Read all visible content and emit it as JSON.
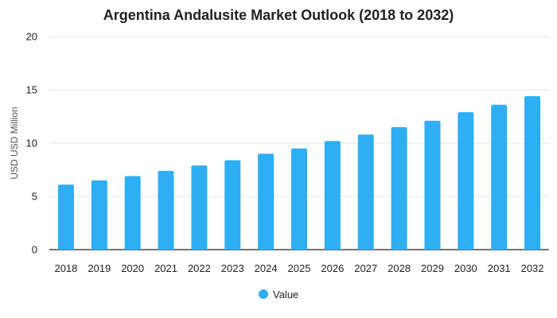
{
  "chart_data": {
    "type": "bar",
    "title": "Argentina Andalusite Market Outlook (2018 to 2032)",
    "xlabel": "",
    "ylabel": "USD USD Million",
    "categories": [
      "2018",
      "2019",
      "2020",
      "2021",
      "2022",
      "2023",
      "2024",
      "2025",
      "2026",
      "2027",
      "2028",
      "2029",
      "2030",
      "2031",
      "2032"
    ],
    "series": [
      {
        "name": "Value",
        "color": "#2eaef5",
        "values": [
          6.1,
          6.5,
          6.9,
          7.4,
          7.9,
          8.4,
          9.0,
          9.5,
          10.2,
          10.8,
          11.5,
          12.1,
          12.9,
          13.6,
          14.4
        ]
      }
    ],
    "ylim": [
      0,
      20
    ],
    "yticks": [
      0,
      5,
      10,
      15,
      20
    ],
    "grid": true,
    "legend_position": "bottom"
  }
}
